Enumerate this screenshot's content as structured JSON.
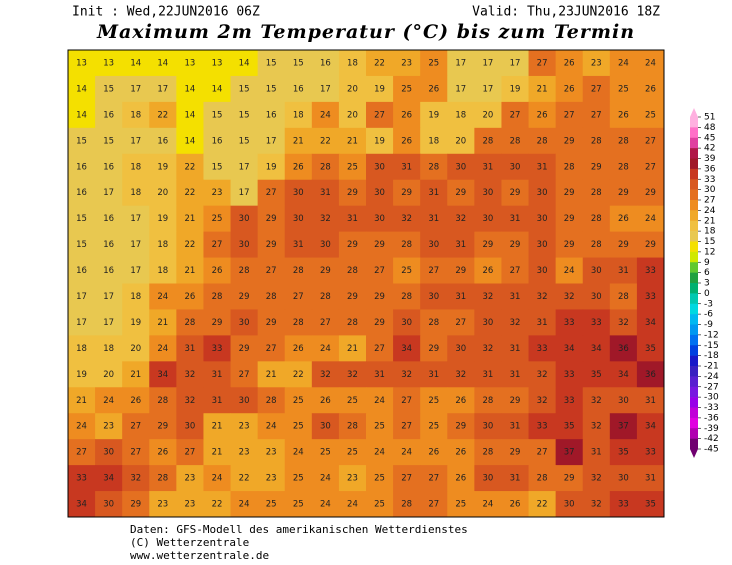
{
  "header": {
    "init": "Init : Wed,22JUN2016 06Z",
    "valid": "Valid: Thu,23JUN2016 18Z",
    "title": "Maximum 2m Temperatur (°C) bis zum Termin"
  },
  "map": {
    "rows": [
      [
        13,
        13,
        14,
        14,
        13,
        13,
        14,
        15,
        15,
        16,
        18,
        22,
        23,
        25,
        17,
        17,
        17,
        27,
        26,
        23,
        24,
        24
      ],
      [
        14,
        15,
        17,
        17,
        14,
        14,
        15,
        15,
        16,
        17,
        20,
        19,
        25,
        26,
        17,
        17,
        19,
        21,
        26,
        27,
        25,
        26
      ],
      [
        14,
        16,
        18,
        22,
        14,
        15,
        15,
        16,
        18,
        24,
        20,
        27,
        26,
        19,
        18,
        20,
        27,
        26,
        27,
        27,
        26,
        25
      ],
      [
        15,
        15,
        17,
        16,
        14,
        16,
        15,
        17,
        21,
        22,
        21,
        19,
        26,
        18,
        20,
        28,
        28,
        28,
        29,
        28,
        28,
        27
      ],
      [
        16,
        16,
        18,
        19,
        22,
        15,
        17,
        19,
        26,
        28,
        25,
        30,
        31,
        28,
        30,
        31,
        30,
        31,
        28,
        29,
        28,
        27
      ],
      [
        16,
        17,
        18,
        20,
        22,
        23,
        17,
        27,
        30,
        31,
        29,
        30,
        29,
        31,
        29,
        30,
        29,
        30,
        29,
        28,
        29,
        29
      ],
      [
        15,
        16,
        17,
        19,
        21,
        25,
        30,
        29,
        30,
        32,
        31,
        30,
        32,
        31,
        32,
        30,
        31,
        30,
        29,
        28,
        26,
        24
      ],
      [
        15,
        16,
        17,
        18,
        22,
        27,
        30,
        29,
        31,
        30,
        29,
        29,
        28,
        30,
        31,
        29,
        29,
        30,
        29,
        28,
        29,
        29
      ],
      [
        16,
        16,
        17,
        18,
        21,
        26,
        28,
        27,
        28,
        29,
        28,
        27,
        25,
        27,
        29,
        26,
        27,
        30,
        24,
        30,
        31,
        33
      ],
      [
        17,
        17,
        18,
        24,
        26,
        28,
        29,
        28,
        27,
        28,
        29,
        29,
        28,
        30,
        31,
        32,
        31,
        32,
        32,
        30,
        28,
        33
      ],
      [
        17,
        17,
        19,
        21,
        28,
        29,
        30,
        29,
        28,
        27,
        28,
        29,
        30,
        28,
        27,
        30,
        32,
        31,
        33,
        33,
        32,
        34
      ],
      [
        18,
        18,
        20,
        24,
        31,
        33,
        29,
        27,
        26,
        24,
        21,
        27,
        34,
        29,
        30,
        32,
        31,
        33,
        34,
        34,
        36,
        35
      ],
      [
        19,
        20,
        21,
        34,
        32,
        31,
        27,
        21,
        22,
        32,
        32,
        31,
        32,
        31,
        32,
        31,
        31,
        32,
        33,
        35,
        34,
        36
      ],
      [
        21,
        24,
        26,
        28,
        32,
        31,
        30,
        28,
        25,
        26,
        25,
        24,
        27,
        25,
        26,
        28,
        29,
        32,
        33,
        32,
        30,
        31
      ],
      [
        24,
        23,
        27,
        29,
        30,
        21,
        23,
        24,
        25,
        30,
        28,
        25,
        27,
        25,
        29,
        30,
        31,
        33,
        35,
        32,
        37,
        34
      ],
      [
        27,
        30,
        27,
        26,
        27,
        21,
        23,
        23,
        24,
        25,
        25,
        24,
        24,
        26,
        26,
        28,
        29,
        27,
        37,
        31,
        35,
        33
      ],
      [
        33,
        34,
        32,
        28,
        23,
        24,
        22,
        23,
        25,
        24,
        23,
        25,
        27,
        27,
        26,
        30,
        31,
        28,
        29,
        32,
        30,
        31
      ],
      [
        34,
        30,
        29,
        23,
        23,
        22,
        24,
        25,
        25,
        24,
        24,
        25,
        28,
        27,
        25,
        24,
        26,
        22,
        30,
        32,
        33,
        35
      ]
    ]
  },
  "colorbar": {
    "ticks": [
      51,
      48,
      45,
      42,
      39,
      36,
      33,
      30,
      27,
      24,
      21,
      18,
      15,
      12,
      9,
      6,
      3,
      0,
      -3,
      -6,
      -9,
      -12,
      -15,
      -18,
      -21,
      -24,
      -27,
      -30,
      -33,
      -36,
      -39,
      -42,
      -45
    ],
    "colors": [
      "#ffb0e0",
      "#ff70c8",
      "#e040a0",
      "#b01848",
      "#a01828",
      "#c83820",
      "#d85820",
      "#e47020",
      "#ee8c20",
      "#f0a828",
      "#f0c040",
      "#e8c850",
      "#f4e000",
      "#d0e800",
      "#60c830",
      "#20a040",
      "#00b070",
      "#00c8b0",
      "#00d8e0",
      "#00b8f0",
      "#0098f0",
      "#0070f0",
      "#0040e0",
      "#1818c8",
      "#3820c0",
      "#5820d0",
      "#7818e0",
      "#9800e8",
      "#c000d8",
      "#e000e0",
      "#b000b0",
      "#700070"
    ]
  },
  "footer": [
    "Daten: GFS-Modell des amerikanischen Wetterdienstes",
    "(C) Wetterzentrale",
    "www.wetterzentrale.de"
  ]
}
